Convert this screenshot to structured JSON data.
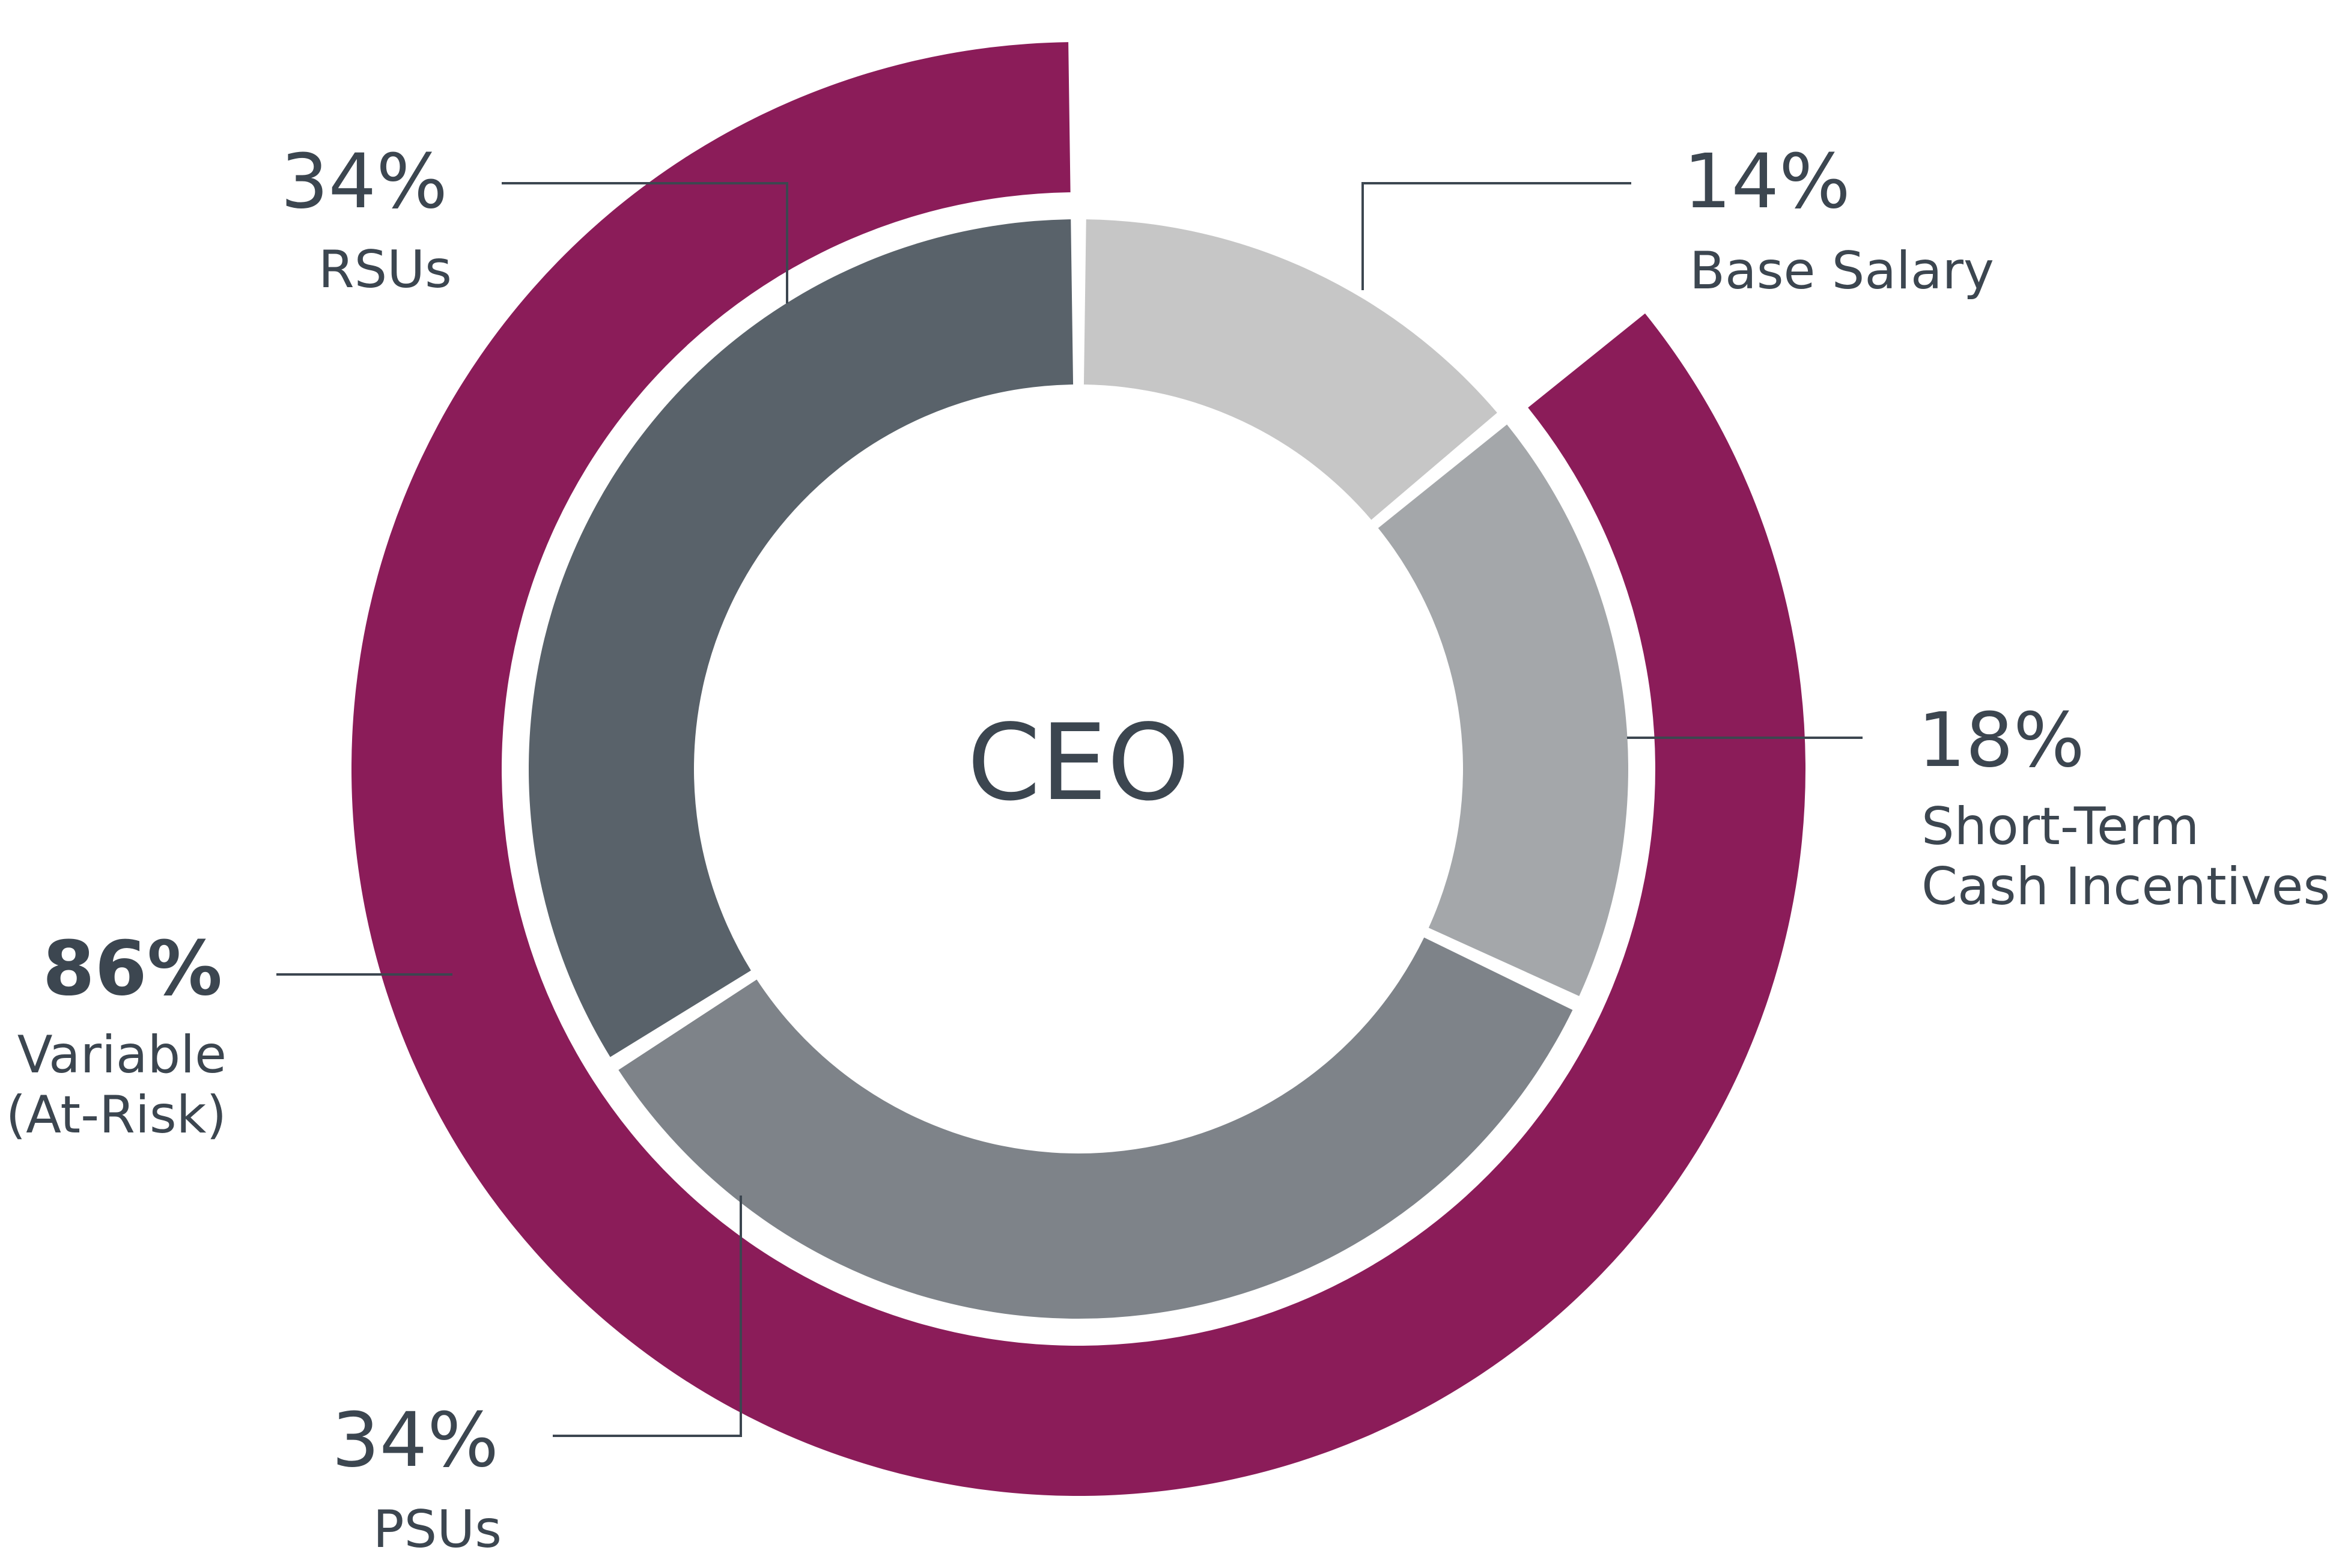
{
  "chart_data": {
    "type": "pie",
    "variant": "nested-donut",
    "title": "CEO",
    "inner_ring": [
      {
        "label": "Base Salary",
        "value": 14,
        "value_label": "14%",
        "color": "#c6c6c6"
      },
      {
        "label_lines": [
          "Short-Term",
          "Cash Incentives"
        ],
        "value": 18,
        "value_label": "18%",
        "color": "#a4a7aa"
      },
      {
        "label": "PSUs",
        "value": 34,
        "value_label": "34%",
        "color": "#7e8389"
      },
      {
        "label": "RSUs",
        "value": 34,
        "value_label": "34%",
        "color": "#59626a"
      }
    ],
    "outer_ring": [
      {
        "label_lines": [
          "Variable",
          "(At-Risk)"
        ],
        "value": 86,
        "value_label": "86%",
        "color": "#8b1c59"
      }
    ]
  }
}
